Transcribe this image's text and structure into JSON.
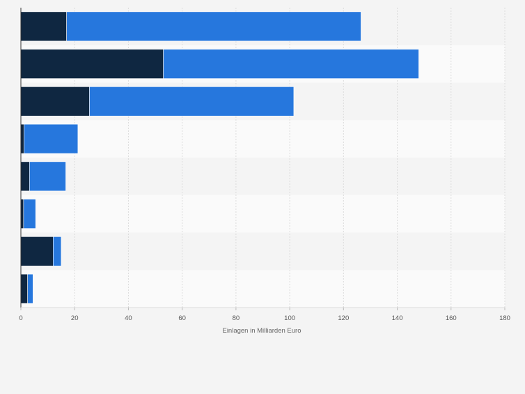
{
  "chart_data": {
    "type": "bar",
    "orientation": "horizontal",
    "stacked": true,
    "xlabel": "Einlagen in Milliarden Euro",
    "xlim": [
      0,
      180
    ],
    "xticks": [
      0,
      20,
      40,
      60,
      80,
      100,
      120,
      140,
      160,
      180
    ],
    "grid": true,
    "series": [
      {
        "color": "#0f2741",
        "values": [
          17,
          53,
          25.5,
          1.2,
          3.2,
          1,
          12,
          2.5
        ]
      },
      {
        "color": "#2677dd",
        "values": [
          109.5,
          95,
          76,
          20,
          13.5,
          4.5,
          3,
          2
        ]
      }
    ]
  }
}
